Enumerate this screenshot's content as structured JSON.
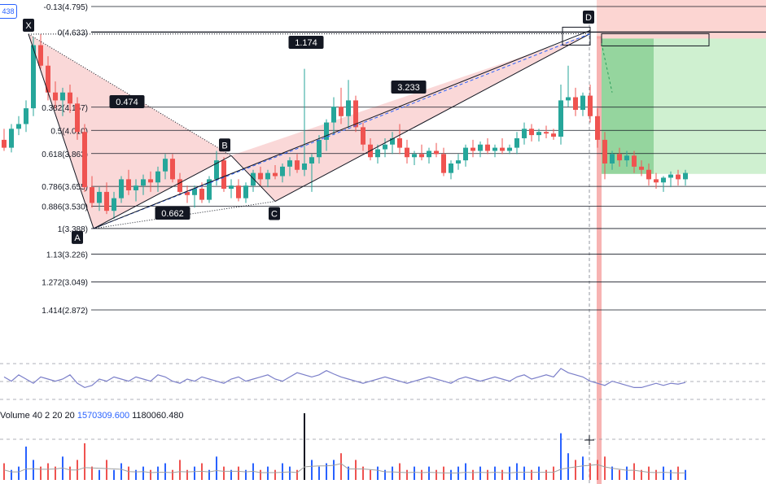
{
  "symbol_chip": "438",
  "fib_levels": [
    {
      "ratio": "-0.13",
      "price": "4.795",
      "label": "-0.13(4.795)"
    },
    {
      "ratio": "0",
      "price": "4.633",
      "label": "0(4.633)"
    },
    {
      "ratio": "0.382",
      "price": "4.157",
      "label": "0.382(4.157)"
    },
    {
      "ratio": "0.5",
      "price": "4.010",
      "label": "0.5(4.010)"
    },
    {
      "ratio": "0.618",
      "price": "3.863",
      "label": "0.618(3.863)"
    },
    {
      "ratio": "0.786",
      "price": "3.655",
      "label": "0.786(3.655)"
    },
    {
      "ratio": "0.886",
      "price": "3.530",
      "label": "0.886(3.530)"
    },
    {
      "ratio": "1",
      "price": "3.388",
      "label": "1(3.388)"
    },
    {
      "ratio": "1.13",
      "price": "3.226",
      "label": "1.13(3.226)"
    },
    {
      "ratio": "1.272",
      "price": "3.049",
      "label": "1.272(3.049)"
    },
    {
      "ratio": "1.414",
      "price": "2.872",
      "label": "1.414(2.872)"
    }
  ],
  "pattern_points": {
    "X": "X",
    "A": "A",
    "B": "B",
    "C": "C",
    "D": "D"
  },
  "pattern_ratios": {
    "xa_b": "0.474",
    "ab_c": "0.662",
    "bc_d": "3.233",
    "xa_d": "1.174"
  },
  "volume_legend": {
    "label": "Volume",
    "params": "40 2 20 20",
    "value1": "1570309.600",
    "value2": "1180060.480"
  },
  "colors": {
    "up": "#26a69a",
    "down": "#ef5350",
    "pattern_fill": "#f8c8c8",
    "stop_zone": "#f9b2ad",
    "target_zone": "#a7e3a9",
    "target_zone_dark": "#66c075",
    "osc_line": "#7b7fc9",
    "vol_ma": "#a0a0a0",
    "vertical_highlight": "#f28b88"
  },
  "chart_data": {
    "type": "candlestick",
    "price_axis": {
      "min": 2.8,
      "max": 4.85
    },
    "candles": [
      [
        3.95,
        4.02,
        3.88,
        3.9
      ],
      [
        3.9,
        4.05,
        3.87,
        4.02
      ],
      [
        4.02,
        4.1,
        3.98,
        4.05
      ],
      [
        4.05,
        4.2,
        4.0,
        4.15
      ],
      [
        4.15,
        4.6,
        4.1,
        4.55
      ],
      [
        4.55,
        4.62,
        4.4,
        4.42
      ],
      [
        4.42,
        4.48,
        4.2,
        4.25
      ],
      [
        4.25,
        4.32,
        4.15,
        4.2
      ],
      [
        4.2,
        4.28,
        4.1,
        4.25
      ],
      [
        4.25,
        4.3,
        4.12,
        4.18
      ],
      [
        4.18,
        4.22,
        3.95,
        4.0
      ],
      [
        4.0,
        4.05,
        3.62,
        3.65
      ],
      [
        3.65,
        3.72,
        3.52,
        3.55
      ],
      [
        3.55,
        3.65,
        3.5,
        3.62
      ],
      [
        3.62,
        3.68,
        3.48,
        3.5
      ],
      [
        3.5,
        3.62,
        3.45,
        3.58
      ],
      [
        3.58,
        3.72,
        3.55,
        3.7
      ],
      [
        3.7,
        3.76,
        3.6,
        3.63
      ],
      [
        3.63,
        3.7,
        3.56,
        3.66
      ],
      [
        3.66,
        3.73,
        3.6,
        3.7
      ],
      [
        3.7,
        3.75,
        3.62,
        3.68
      ],
      [
        3.68,
        3.78,
        3.62,
        3.75
      ],
      [
        3.75,
        3.86,
        3.7,
        3.83
      ],
      [
        3.83,
        3.86,
        3.68,
        3.7
      ],
      [
        3.7,
        3.74,
        3.6,
        3.62
      ],
      [
        3.62,
        3.66,
        3.55,
        3.6
      ],
      [
        3.6,
        3.66,
        3.52,
        3.64
      ],
      [
        3.64,
        3.68,
        3.55,
        3.57
      ],
      [
        3.57,
        3.72,
        3.55,
        3.7
      ],
      [
        3.7,
        3.88,
        3.66,
        3.82
      ],
      [
        3.82,
        3.84,
        3.62,
        3.64
      ],
      [
        3.64,
        3.7,
        3.58,
        3.66
      ],
      [
        3.66,
        3.7,
        3.56,
        3.58
      ],
      [
        3.58,
        3.68,
        3.55,
        3.66
      ],
      [
        3.66,
        3.76,
        3.62,
        3.74
      ],
      [
        3.74,
        3.78,
        3.66,
        3.7
      ],
      [
        3.7,
        3.76,
        3.65,
        3.74
      ],
      [
        3.74,
        3.79,
        3.7,
        3.72
      ],
      [
        3.72,
        3.8,
        3.68,
        3.78
      ],
      [
        3.78,
        3.84,
        3.72,
        3.82
      ],
      [
        3.82,
        3.86,
        3.74,
        3.76
      ],
      [
        3.76,
        4.4,
        3.72,
        3.8
      ],
      [
        3.8,
        3.86,
        3.62,
        3.84
      ],
      [
        3.84,
        3.98,
        3.8,
        3.95
      ],
      [
        3.95,
        4.08,
        3.88,
        4.06
      ],
      [
        4.06,
        4.22,
        3.98,
        4.16
      ],
      [
        4.16,
        4.28,
        4.05,
        4.1
      ],
      [
        4.1,
        4.33,
        4.02,
        4.2
      ],
      [
        4.2,
        4.23,
        4.0,
        4.03
      ],
      [
        4.03,
        4.06,
        3.88,
        3.92
      ],
      [
        3.92,
        3.96,
        3.82,
        3.84
      ],
      [
        3.84,
        3.92,
        3.8,
        3.89
      ],
      [
        3.89,
        3.96,
        3.84,
        3.92
      ],
      [
        3.92,
        4.0,
        3.86,
        3.96
      ],
      [
        3.96,
        4.05,
        3.86,
        3.9
      ],
      [
        3.9,
        3.95,
        3.8,
        3.84
      ],
      [
        3.84,
        3.88,
        3.79,
        3.86
      ],
      [
        3.86,
        3.92,
        3.82,
        3.84
      ],
      [
        3.84,
        3.9,
        3.8,
        3.88
      ],
      [
        3.88,
        3.93,
        3.84,
        3.86
      ],
      [
        3.86,
        3.9,
        3.72,
        3.74
      ],
      [
        3.74,
        3.82,
        3.7,
        3.8
      ],
      [
        3.8,
        3.86,
        3.76,
        3.82
      ],
      [
        3.82,
        3.92,
        3.78,
        3.9
      ],
      [
        3.9,
        3.95,
        3.84,
        3.88
      ],
      [
        3.88,
        3.94,
        3.84,
        3.92
      ],
      [
        3.92,
        3.96,
        3.86,
        3.88
      ],
      [
        3.88,
        3.92,
        3.84,
        3.9
      ],
      [
        3.9,
        3.96,
        3.86,
        3.88
      ],
      [
        3.88,
        3.92,
        3.86,
        3.9
      ],
      [
        3.9,
        4.0,
        3.86,
        3.96
      ],
      [
        3.96,
        4.06,
        3.92,
        4.02
      ],
      [
        4.02,
        4.05,
        3.94,
        3.98
      ],
      [
        3.98,
        4.02,
        3.94,
        4.0
      ],
      [
        4.0,
        4.04,
        3.96,
        3.99
      ],
      [
        3.99,
        4.02,
        3.95,
        3.97
      ],
      [
        3.97,
        4.3,
        3.92,
        4.2
      ],
      [
        4.2,
        4.42,
        4.16,
        4.22
      ],
      [
        4.22,
        4.28,
        4.1,
        4.14
      ],
      [
        4.14,
        4.25,
        4.1,
        4.23
      ],
      [
        4.23,
        4.3,
        4.06,
        4.1
      ],
      [
        4.1,
        4.15,
        3.9,
        3.95
      ],
      [
        3.95,
        4.0,
        3.7,
        3.8
      ],
      [
        3.8,
        3.88,
        3.76,
        3.86
      ],
      [
        3.86,
        3.9,
        3.78,
        3.82
      ],
      [
        3.82,
        3.88,
        3.78,
        3.85
      ],
      [
        3.85,
        3.88,
        3.74,
        3.78
      ],
      [
        3.78,
        3.82,
        3.72,
        3.76
      ],
      [
        3.76,
        3.8,
        3.66,
        3.7
      ],
      [
        3.7,
        3.74,
        3.64,
        3.68
      ],
      [
        3.68,
        3.72,
        3.62,
        3.71
      ],
      [
        3.71,
        3.75,
        3.65,
        3.73
      ],
      [
        3.73,
        3.76,
        3.66,
        3.7
      ],
      [
        3.7,
        3.76,
        3.66,
        3.74
      ]
    ],
    "volume": [
      0.25,
      0.15,
      0.2,
      0.5,
      0.3,
      0.2,
      0.25,
      0.2,
      0.35,
      0.2,
      0.3,
      0.55,
      0.2,
      0.15,
      0.3,
      0.15,
      0.25,
      0.2,
      0.15,
      0.2,
      0.15,
      0.2,
      0.25,
      0.15,
      0.3,
      0.15,
      0.2,
      0.25,
      0.15,
      0.35,
      0.2,
      0.15,
      0.2,
      0.15,
      0.25,
      0.15,
      0.2,
      0.15,
      0.25,
      0.2,
      0.15,
      1.0,
      0.3,
      0.2,
      0.25,
      0.3,
      0.4,
      0.2,
      0.3,
      0.2,
      0.15,
      0.2,
      0.15,
      0.2,
      0.25,
      0.15,
      0.2,
      0.15,
      0.2,
      0.15,
      0.2,
      0.15,
      0.2,
      0.25,
      0.15,
      0.2,
      0.15,
      0.2,
      0.15,
      0.2,
      0.25,
      0.2,
      0.15,
      0.2,
      0.15,
      0.2,
      0.7,
      0.4,
      0.3,
      0.35,
      0.25,
      0.3,
      0.35,
      0.2,
      0.15,
      0.2,
      0.25,
      0.15,
      0.2,
      0.15,
      0.2,
      0.15,
      0.2,
      0.15
    ],
    "oscillator": [
      0.55,
      0.45,
      0.6,
      0.5,
      0.4,
      0.55,
      0.5,
      0.45,
      0.5,
      0.6,
      0.4,
      0.3,
      0.35,
      0.5,
      0.45,
      0.55,
      0.5,
      0.45,
      0.55,
      0.5,
      0.45,
      0.6,
      0.55,
      0.45,
      0.4,
      0.5,
      0.45,
      0.55,
      0.5,
      0.45,
      0.4,
      0.5,
      0.55,
      0.45,
      0.5,
      0.55,
      0.6,
      0.5,
      0.45,
      0.55,
      0.65,
      0.6,
      0.55,
      0.6,
      0.7,
      0.62,
      0.55,
      0.5,
      0.45,
      0.4,
      0.45,
      0.5,
      0.55,
      0.5,
      0.45,
      0.4,
      0.45,
      0.5,
      0.55,
      0.5,
      0.45,
      0.4,
      0.5,
      0.55,
      0.5,
      0.45,
      0.5,
      0.55,
      0.5,
      0.45,
      0.55,
      0.6,
      0.5,
      0.55,
      0.6,
      0.55,
      0.75,
      0.65,
      0.6,
      0.55,
      0.45,
      0.4,
      0.35,
      0.45,
      0.4,
      0.35,
      0.3,
      0.3,
      0.35,
      0.4,
      0.35,
      0.4,
      0.38,
      0.42
    ]
  }
}
